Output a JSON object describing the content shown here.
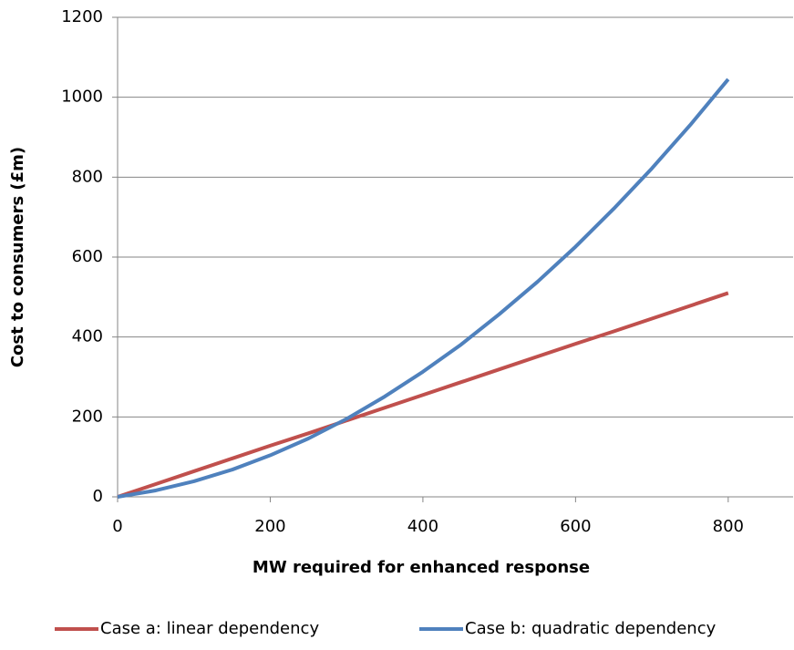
{
  "chart_data": {
    "type": "line",
    "x_label": "MW required for enhanced response",
    "y_label": "Cost to consumers (£m)",
    "x": [
      0,
      50,
      100,
      150,
      200,
      250,
      300,
      350,
      400,
      450,
      500,
      550,
      600,
      650,
      700,
      750,
      800
    ],
    "series": [
      {
        "name": "Case a: linear dependency",
        "color": "#c0504d",
        "values": [
          0,
          32,
          64,
          96,
          128,
          159,
          191,
          223,
          255,
          287,
          319,
          351,
          383,
          414,
          446,
          478,
          510
        ]
      },
      {
        "name": "Case b: quadratic dependency",
        "color": "#4f81bd",
        "values": [
          0,
          16,
          39,
          68,
          104,
          146,
          195,
          251,
          313,
          381,
          457,
          538,
          626,
          721,
          822,
          930,
          1045
        ]
      }
    ],
    "xlim": [
      0,
      885
    ],
    "xticks": [
      0,
      200,
      400,
      600,
      800
    ],
    "ylim": [
      0,
      1200
    ],
    "yticks": [
      0,
      200,
      400,
      600,
      800,
      1000,
      1200
    ],
    "grid": true,
    "legend": "bottom"
  }
}
